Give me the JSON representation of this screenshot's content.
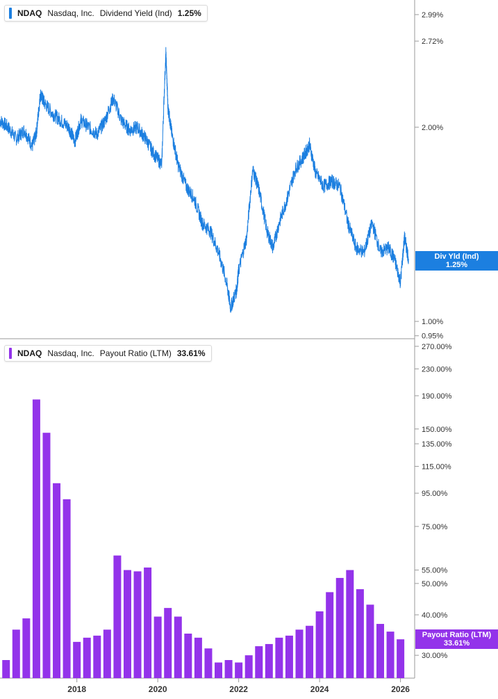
{
  "colors": {
    "yield_line": "#1c7fe0",
    "payout_bar": "#9333ea",
    "axis": "#9a9a9a",
    "text": "#333333"
  },
  "top_legend": {
    "symbol": "NDAQ",
    "company": "Nasdaq, Inc.",
    "metric": "Dividend Yield (Ind)",
    "value": "1.25%"
  },
  "bottom_legend": {
    "symbol": "NDAQ",
    "company": "Nasdaq, Inc.",
    "metric": "Payout Ratio (LTM)",
    "value": "33.61%"
  },
  "yield_badge": {
    "label": "Div Yld (Ind)",
    "value": "1.25%"
  },
  "payout_badge": {
    "label": "Payout Ratio (LTM)",
    "value": "33.61%"
  },
  "chart_data": [
    {
      "type": "line",
      "title": "Dividend Yield (Ind)",
      "y_scale": "log",
      "ylim": [
        0.94,
        3.15
      ],
      "xlim": [
        2016.1,
        2026.35
      ],
      "y_ticks": [
        {
          "value": 2.99,
          "label": "2.99%"
        },
        {
          "value": 2.72,
          "label": "2.72%"
        },
        {
          "value": 2.0,
          "label": "2.00%"
        },
        {
          "value": 1.0,
          "label": "1.00%"
        },
        {
          "value": 0.95,
          "label": "0.95%"
        }
      ],
      "series": [
        {
          "values": [
            [
              2016.1,
              2.05
            ],
            [
              2016.3,
              2.0
            ],
            [
              2016.5,
              1.92
            ],
            [
              2016.7,
              1.98
            ],
            [
              2016.9,
              1.87
            ],
            [
              2017.0,
              1.96
            ],
            [
              2017.1,
              2.25
            ],
            [
              2017.2,
              2.18
            ],
            [
              2017.4,
              2.1
            ],
            [
              2017.6,
              2.05
            ],
            [
              2017.8,
              2.0
            ],
            [
              2017.95,
              1.9
            ],
            [
              2018.1,
              2.05
            ],
            [
              2018.3,
              2.0
            ],
            [
              2018.5,
              1.95
            ],
            [
              2018.7,
              2.05
            ],
            [
              2018.9,
              2.22
            ],
            [
              2019.1,
              2.05
            ],
            [
              2019.3,
              1.98
            ],
            [
              2019.5,
              2.0
            ],
            [
              2019.7,
              1.92
            ],
            [
              2019.9,
              1.82
            ],
            [
              2020.1,
              1.75
            ],
            [
              2020.2,
              2.6
            ],
            [
              2020.25,
              2.15
            ],
            [
              2020.35,
              1.95
            ],
            [
              2020.5,
              1.75
            ],
            [
              2020.7,
              1.62
            ],
            [
              2020.9,
              1.55
            ],
            [
              2021.1,
              1.42
            ],
            [
              2021.3,
              1.38
            ],
            [
              2021.5,
              1.28
            ],
            [
              2021.7,
              1.15
            ],
            [
              2021.8,
              1.05
            ],
            [
              2021.95,
              1.12
            ],
            [
              2022.0,
              1.2
            ],
            [
              2022.2,
              1.35
            ],
            [
              2022.35,
              1.72
            ],
            [
              2022.5,
              1.6
            ],
            [
              2022.7,
              1.38
            ],
            [
              2022.85,
              1.3
            ],
            [
              2023.0,
              1.42
            ],
            [
              2023.2,
              1.55
            ],
            [
              2023.4,
              1.72
            ],
            [
              2023.6,
              1.8
            ],
            [
              2023.75,
              1.88
            ],
            [
              2023.9,
              1.7
            ],
            [
              2024.1,
              1.62
            ],
            [
              2024.3,
              1.65
            ],
            [
              2024.5,
              1.62
            ],
            [
              2024.7,
              1.42
            ],
            [
              2024.9,
              1.3
            ],
            [
              2025.1,
              1.28
            ],
            [
              2025.3,
              1.42
            ],
            [
              2025.5,
              1.28
            ],
            [
              2025.7,
              1.3
            ],
            [
              2025.85,
              1.25
            ],
            [
              2026.0,
              1.15
            ],
            [
              2026.1,
              1.35
            ],
            [
              2026.2,
              1.25
            ]
          ]
        }
      ]
    },
    {
      "type": "bar",
      "title": "Payout Ratio (LTM)",
      "y_scale": "log",
      "ylim": [
        25.5,
        285
      ],
      "xlim": [
        2016.1,
        2026.35
      ],
      "y_ticks": [
        {
          "value": 270,
          "label": "270.00%"
        },
        {
          "value": 230,
          "label": "230.00%"
        },
        {
          "value": 190,
          "label": "190.00%"
        },
        {
          "value": 150,
          "label": "150.00%"
        },
        {
          "value": 135,
          "label": "135.00%"
        },
        {
          "value": 115,
          "label": "115.00%"
        },
        {
          "value": 95,
          "label": "95.00%"
        },
        {
          "value": 75,
          "label": "75.00%"
        },
        {
          "value": 55,
          "label": "55.00%"
        },
        {
          "value": 50,
          "label": "50.00%"
        },
        {
          "value": 40,
          "label": "40.00%"
        },
        {
          "value": 30,
          "label": "30.00%"
        }
      ],
      "x_ticks": [
        "2018",
        "2020",
        "2022",
        "2024",
        "2026"
      ],
      "x_tick_values": [
        2018,
        2020,
        2022,
        2024,
        2026
      ],
      "bars": [
        [
          2016.25,
          29
        ],
        [
          2016.5,
          36
        ],
        [
          2016.75,
          39
        ],
        [
          2017.0,
          185
        ],
        [
          2017.25,
          146
        ],
        [
          2017.5,
          102
        ],
        [
          2017.75,
          91
        ],
        [
          2018.0,
          33
        ],
        [
          2018.25,
          34
        ],
        [
          2018.5,
          34.5
        ],
        [
          2018.75,
          36
        ],
        [
          2019.0,
          61
        ],
        [
          2019.25,
          55
        ],
        [
          2019.5,
          54.5
        ],
        [
          2019.75,
          56
        ],
        [
          2020.0,
          39.5
        ],
        [
          2020.25,
          42
        ],
        [
          2020.5,
          39.5
        ],
        [
          2020.75,
          35
        ],
        [
          2021.0,
          34
        ],
        [
          2021.25,
          31.5
        ],
        [
          2021.5,
          28.5
        ],
        [
          2021.75,
          29
        ],
        [
          2022.0,
          28.5
        ],
        [
          2022.25,
          30
        ],
        [
          2022.5,
          32
        ],
        [
          2022.75,
          32.5
        ],
        [
          2023.0,
          34
        ],
        [
          2023.25,
          34.5
        ],
        [
          2023.5,
          36
        ],
        [
          2023.75,
          37
        ],
        [
          2024.0,
          41
        ],
        [
          2024.25,
          47
        ],
        [
          2024.5,
          52
        ],
        [
          2024.75,
          55
        ],
        [
          2025.0,
          48
        ],
        [
          2025.25,
          43
        ],
        [
          2025.5,
          37.5
        ],
        [
          2025.75,
          35.5
        ],
        [
          2026.0,
          33.61
        ]
      ]
    }
  ]
}
